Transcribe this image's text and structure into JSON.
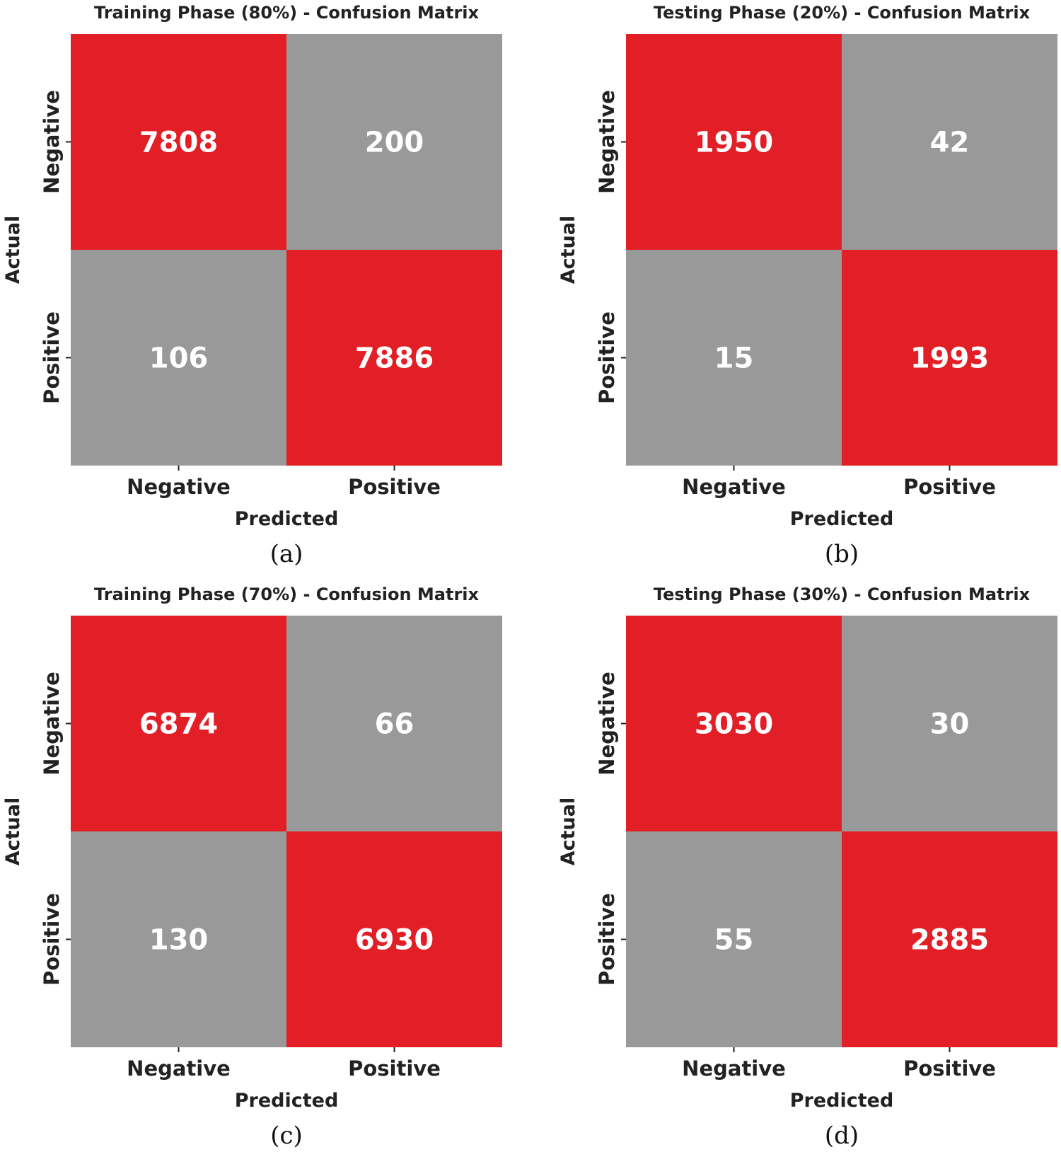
{
  "colors": {
    "diagonal": "#e21f26",
    "off_diagonal": "#999999",
    "value_text": "#ffffff",
    "label_text": "#222222"
  },
  "chart_data": [
    {
      "type": "heatmap",
      "title": "Training Phase (80%) - Confusion Matrix",
      "xlabel": "Predicted",
      "ylabel": "Actual",
      "x_categories": [
        "Negative",
        "Positive"
      ],
      "y_categories": [
        "Negative",
        "Positive"
      ],
      "values": [
        [
          7808,
          200
        ],
        [
          106,
          7886
        ]
      ],
      "caption": "(a)"
    },
    {
      "type": "heatmap",
      "title": "Testing Phase (20%) - Confusion Matrix",
      "xlabel": "Predicted",
      "ylabel": "Actual",
      "x_categories": [
        "Negative",
        "Positive"
      ],
      "y_categories": [
        "Negative",
        "Positive"
      ],
      "values": [
        [
          1950,
          42
        ],
        [
          15,
          1993
        ]
      ],
      "caption": "(b)"
    },
    {
      "type": "heatmap",
      "title": "Training Phase (70%) - Confusion Matrix",
      "xlabel": "Predicted",
      "ylabel": "Actual",
      "x_categories": [
        "Negative",
        "Positive"
      ],
      "y_categories": [
        "Negative",
        "Positive"
      ],
      "values": [
        [
          6874,
          66
        ],
        [
          130,
          6930
        ]
      ],
      "caption": "(c)"
    },
    {
      "type": "heatmap",
      "title": "Testing Phase (30%) - Confusion Matrix",
      "xlabel": "Predicted",
      "ylabel": "Actual",
      "x_categories": [
        "Negative",
        "Positive"
      ],
      "y_categories": [
        "Negative",
        "Positive"
      ],
      "values": [
        [
          3030,
          30
        ],
        [
          55,
          2885
        ]
      ],
      "caption": "(d)"
    }
  ]
}
